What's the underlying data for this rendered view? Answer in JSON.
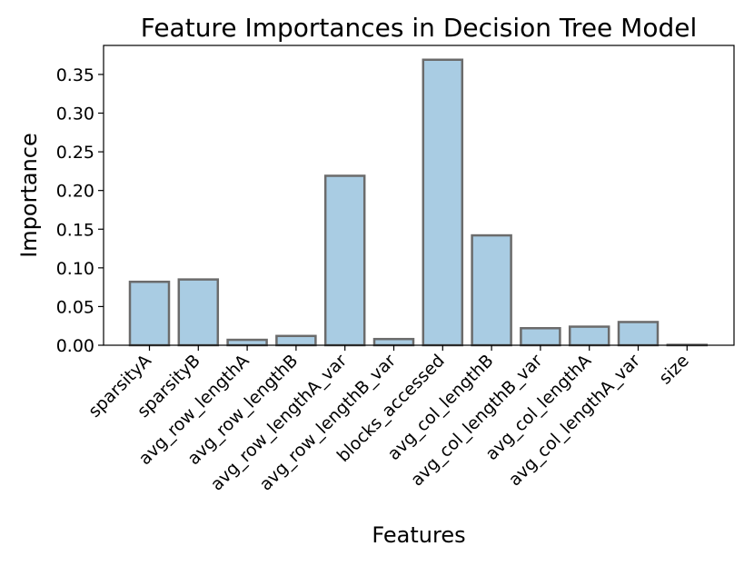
{
  "chart_data": {
    "type": "bar",
    "title": "Feature Importances in Decision Tree Model",
    "xlabel": "Features",
    "ylabel": "Importance",
    "categories": [
      "sparsityA",
      "sparsityB",
      "avg_row_lengthA",
      "avg_row_lengthB",
      "avg_row_lengthA_var",
      "avg_row_lengthB_var",
      "blocks_accessed",
      "avg_col_lengthB",
      "avg_col_lengthB_var",
      "avg_col_lengthA",
      "avg_col_lengthA_var",
      "size"
    ],
    "values": [
      0.082,
      0.085,
      0.007,
      0.012,
      0.219,
      0.008,
      0.369,
      0.142,
      0.022,
      0.024,
      0.03,
      0.0005
    ],
    "ylim": [
      0,
      0.3875
    ],
    "yticks": [
      0.0,
      0.05,
      0.1,
      0.15,
      0.2,
      0.25,
      0.3,
      0.35
    ],
    "ytick_labels": [
      "0.00",
      "0.05",
      "0.10",
      "0.15",
      "0.20",
      "0.25",
      "0.30",
      "0.35"
    ],
    "grid": false,
    "colors": {
      "bar_fill": "#a9cce3",
      "bar_edge": "#6b6b6b",
      "axis": "#000000"
    }
  }
}
